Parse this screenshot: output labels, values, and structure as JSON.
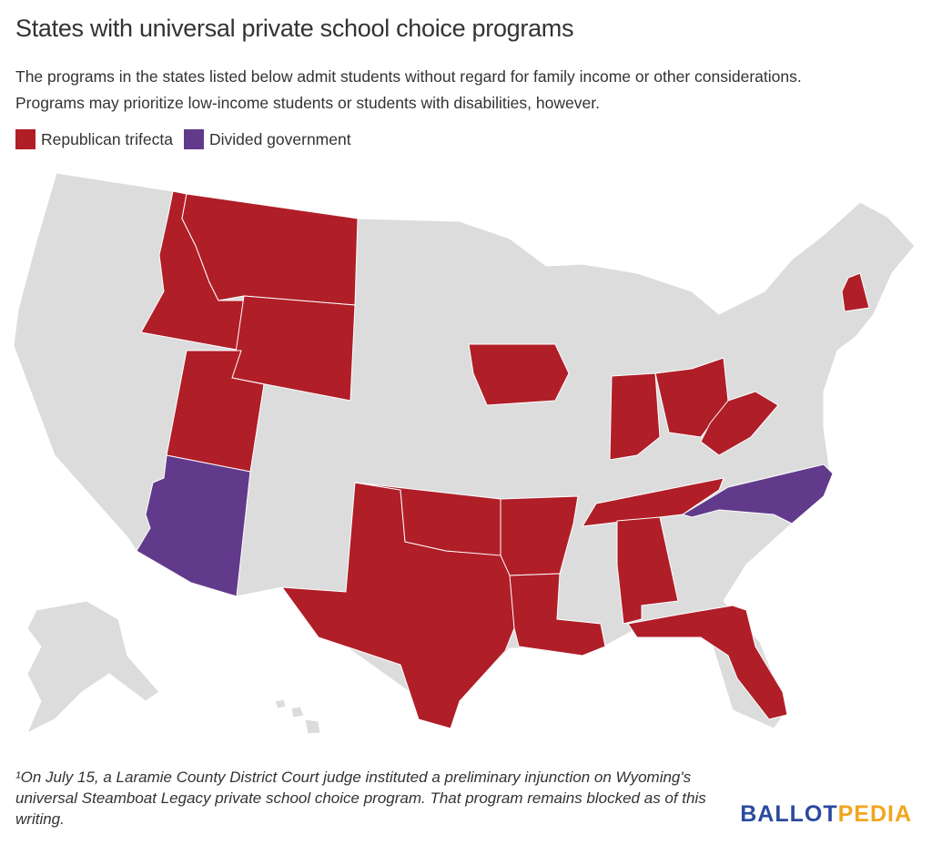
{
  "title": "States with universal private school choice programs",
  "subtitle_line1": "The programs in the states listed below admit students without regard for family income or other considerations.",
  "subtitle_line2": "Programs may prioritize low-income students or students with disabilities, however.",
  "legend": [
    {
      "label": "Republican trifecta",
      "color": "#b01e28"
    },
    {
      "label": "Divided government",
      "color": "#623a8b"
    }
  ],
  "map_colors": {
    "base": "#dcdcdc",
    "border": "#ffffff"
  },
  "footnote": "¹On July 15, a Laramie County District Court judge instituted a preliminary injunction on Wyoming's universal Steamboat Legacy private school choice program. That program remains blocked as of this writing.",
  "logo": {
    "part1": "BALLOT",
    "part2": "PEDIA"
  }
}
